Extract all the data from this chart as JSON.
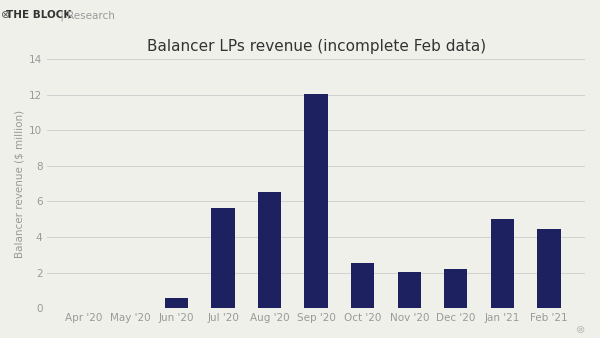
{
  "title": "Balancer LPs revenue (incomplete Feb data)",
  "ylabel": "Balancer revenue ($ million)",
  "categories": [
    "Apr '20",
    "May '20",
    "Jun '20",
    "Jul '20",
    "Aug '20",
    "Sep '20",
    "Oct '20",
    "Nov '20",
    "Dec '20",
    "Jan '21",
    "Feb '21"
  ],
  "values": [
    0,
    0,
    0.55,
    5.6,
    6.55,
    12.05,
    2.55,
    2.05,
    2.2,
    5.0,
    4.45
  ],
  "bar_color": "#1e2160",
  "background_color": "#f0f0eb",
  "plot_bg_color": "#f0f0eb",
  "ylim": [
    0,
    14
  ],
  "yticks": [
    0,
    2,
    4,
    6,
    8,
    10,
    12,
    14
  ],
  "grid_color": "#cccccc",
  "bar_width": 0.5,
  "title_fontsize": 11,
  "ylabel_fontsize": 7.5,
  "tick_fontsize": 7.5,
  "tick_color": "#999999",
  "title_color": "#333333",
  "brand_text": "THE BLOCK",
  "brand_sep": " | ",
  "brand_sub": "Research",
  "watermark_color": "#bbbbbb"
}
